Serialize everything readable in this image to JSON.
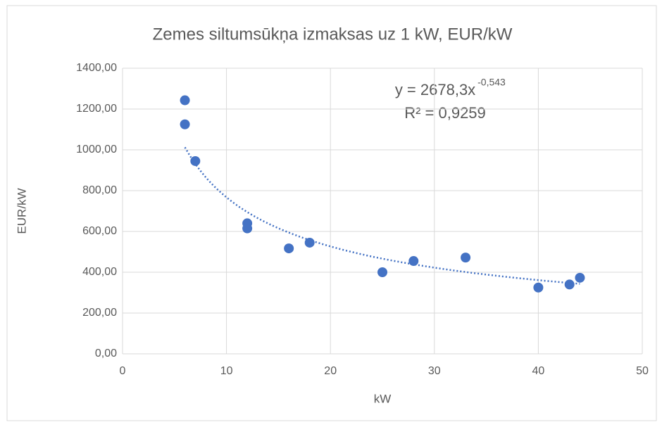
{
  "chart_data": {
    "type": "scatter",
    "title": "Zemes siltumsūkņa izmaksas uz 1 kW, EUR/kW",
    "x_label": "kW",
    "y_label": "EUR/kW",
    "color": "#4472c4",
    "x": [
      6,
      6,
      7,
      12,
      12,
      16,
      18,
      25,
      28,
      33,
      40,
      43,
      44
    ],
    "values": [
      1243,
      1125,
      945,
      640,
      615,
      517,
      545,
      400,
      455,
      472,
      325,
      340,
      373
    ],
    "xlim": [
      0,
      50
    ],
    "xticks": [
      0,
      10,
      20,
      30,
      40,
      50
    ],
    "ylim": [
      0,
      1400
    ],
    "yticks": [
      {
        "value": 0,
        "label": "0,00"
      },
      {
        "value": 200,
        "label": "200,00"
      },
      {
        "value": 400,
        "label": "400,00"
      },
      {
        "value": 600,
        "label": "600,00"
      },
      {
        "value": 800,
        "label": "800,00"
      },
      {
        "value": 1000,
        "label": "1000,00"
      },
      {
        "value": 1200,
        "label": "1200,00"
      },
      {
        "value": 1400,
        "label": "1400,00"
      }
    ],
    "grid": true,
    "trendline": {
      "type": "power",
      "coefficient": 2678.3,
      "exponent": -0.543,
      "xrange": [
        6,
        44
      ]
    },
    "equation": "y = 2678,3x",
    "equation_exponent": "-0,543",
    "r_squared": "R² = 0,9259"
  }
}
